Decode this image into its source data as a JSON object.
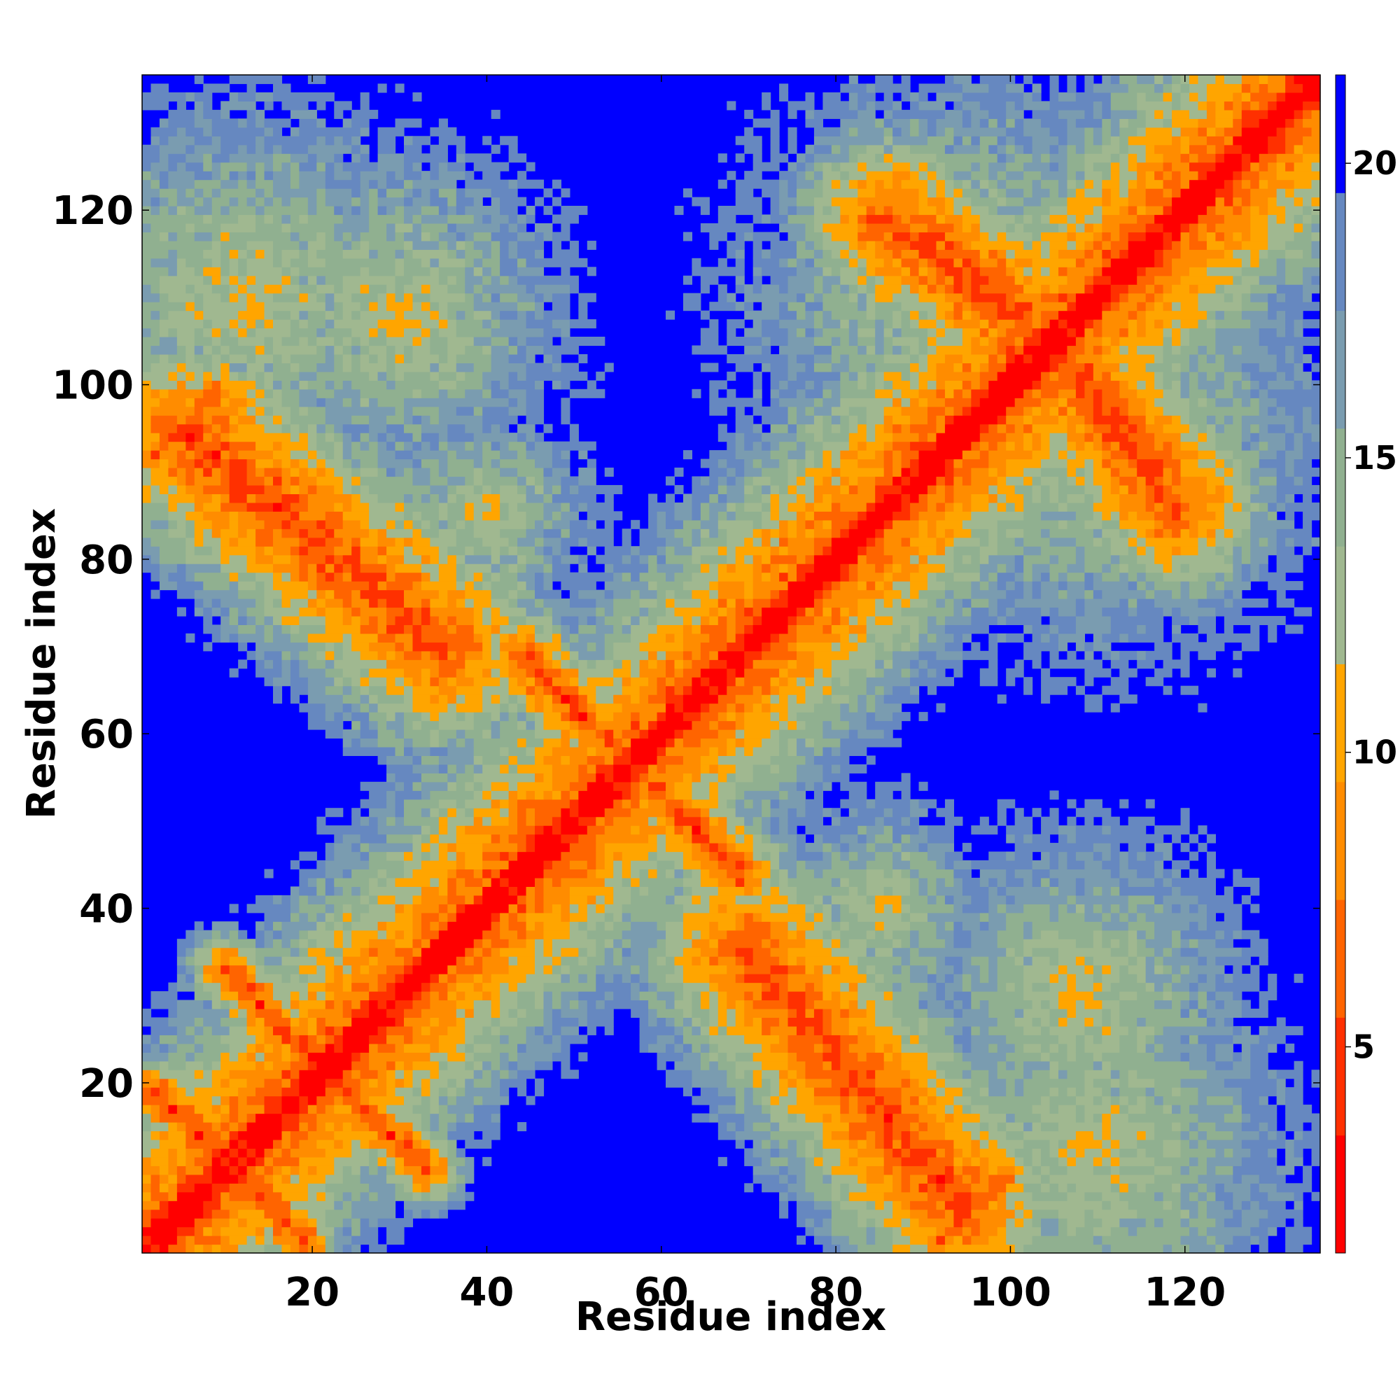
{
  "chart_data": {
    "type": "heatmap",
    "title": "",
    "xlabel": "Residue index",
    "ylabel": "Residue index",
    "n_residues": 135,
    "xlim": [
      0.5,
      135.5
    ],
    "ylim": [
      0.5,
      135.5
    ],
    "x_ticks": [
      20,
      40,
      60,
      80,
      100,
      120
    ],
    "y_ticks": [
      20,
      40,
      60,
      80,
      100,
      120
    ],
    "colorbar": {
      "ticks": [
        5,
        10,
        15,
        20
      ],
      "range": [
        1.5,
        21.5
      ],
      "colors": [
        "#ff0000",
        "#ff3000",
        "#ff6400",
        "#ff8c00",
        "#ffa500",
        "#a0b890",
        "#90b090",
        "#7a9cb0",
        "#6688c0",
        "#0000ff"
      ]
    },
    "value_encoding": "approximate residue-residue distance; values above 20 shown as saturated blue",
    "contact_bands": [
      {
        "description": "main diagonal",
        "from": [
          1,
          1
        ],
        "to": [
          135,
          135
        ]
      },
      {
        "description": "anti-diagonal strand pairing",
        "from": [
          2,
          19
        ],
        "to": [
          19,
          2
        ]
      },
      {
        "description": "anti-diagonal strand pairing",
        "from": [
          10,
          32
        ],
        "to": [
          32,
          10
        ]
      },
      {
        "description": "helix packing cross",
        "from": [
          45,
          68
        ],
        "to": [
          68,
          45
        ]
      },
      {
        "description": "cross-domain contacts",
        "from": [
          5,
          95
        ],
        "to": [
          35,
          70
        ]
      },
      {
        "description": "cross-domain contacts",
        "from": [
          95,
          5
        ],
        "to": [
          70,
          35
        ]
      },
      {
        "description": "C-terminal domain contacts",
        "from": [
          85,
          118
        ],
        "to": [
          122,
          92
        ]
      }
    ]
  }
}
